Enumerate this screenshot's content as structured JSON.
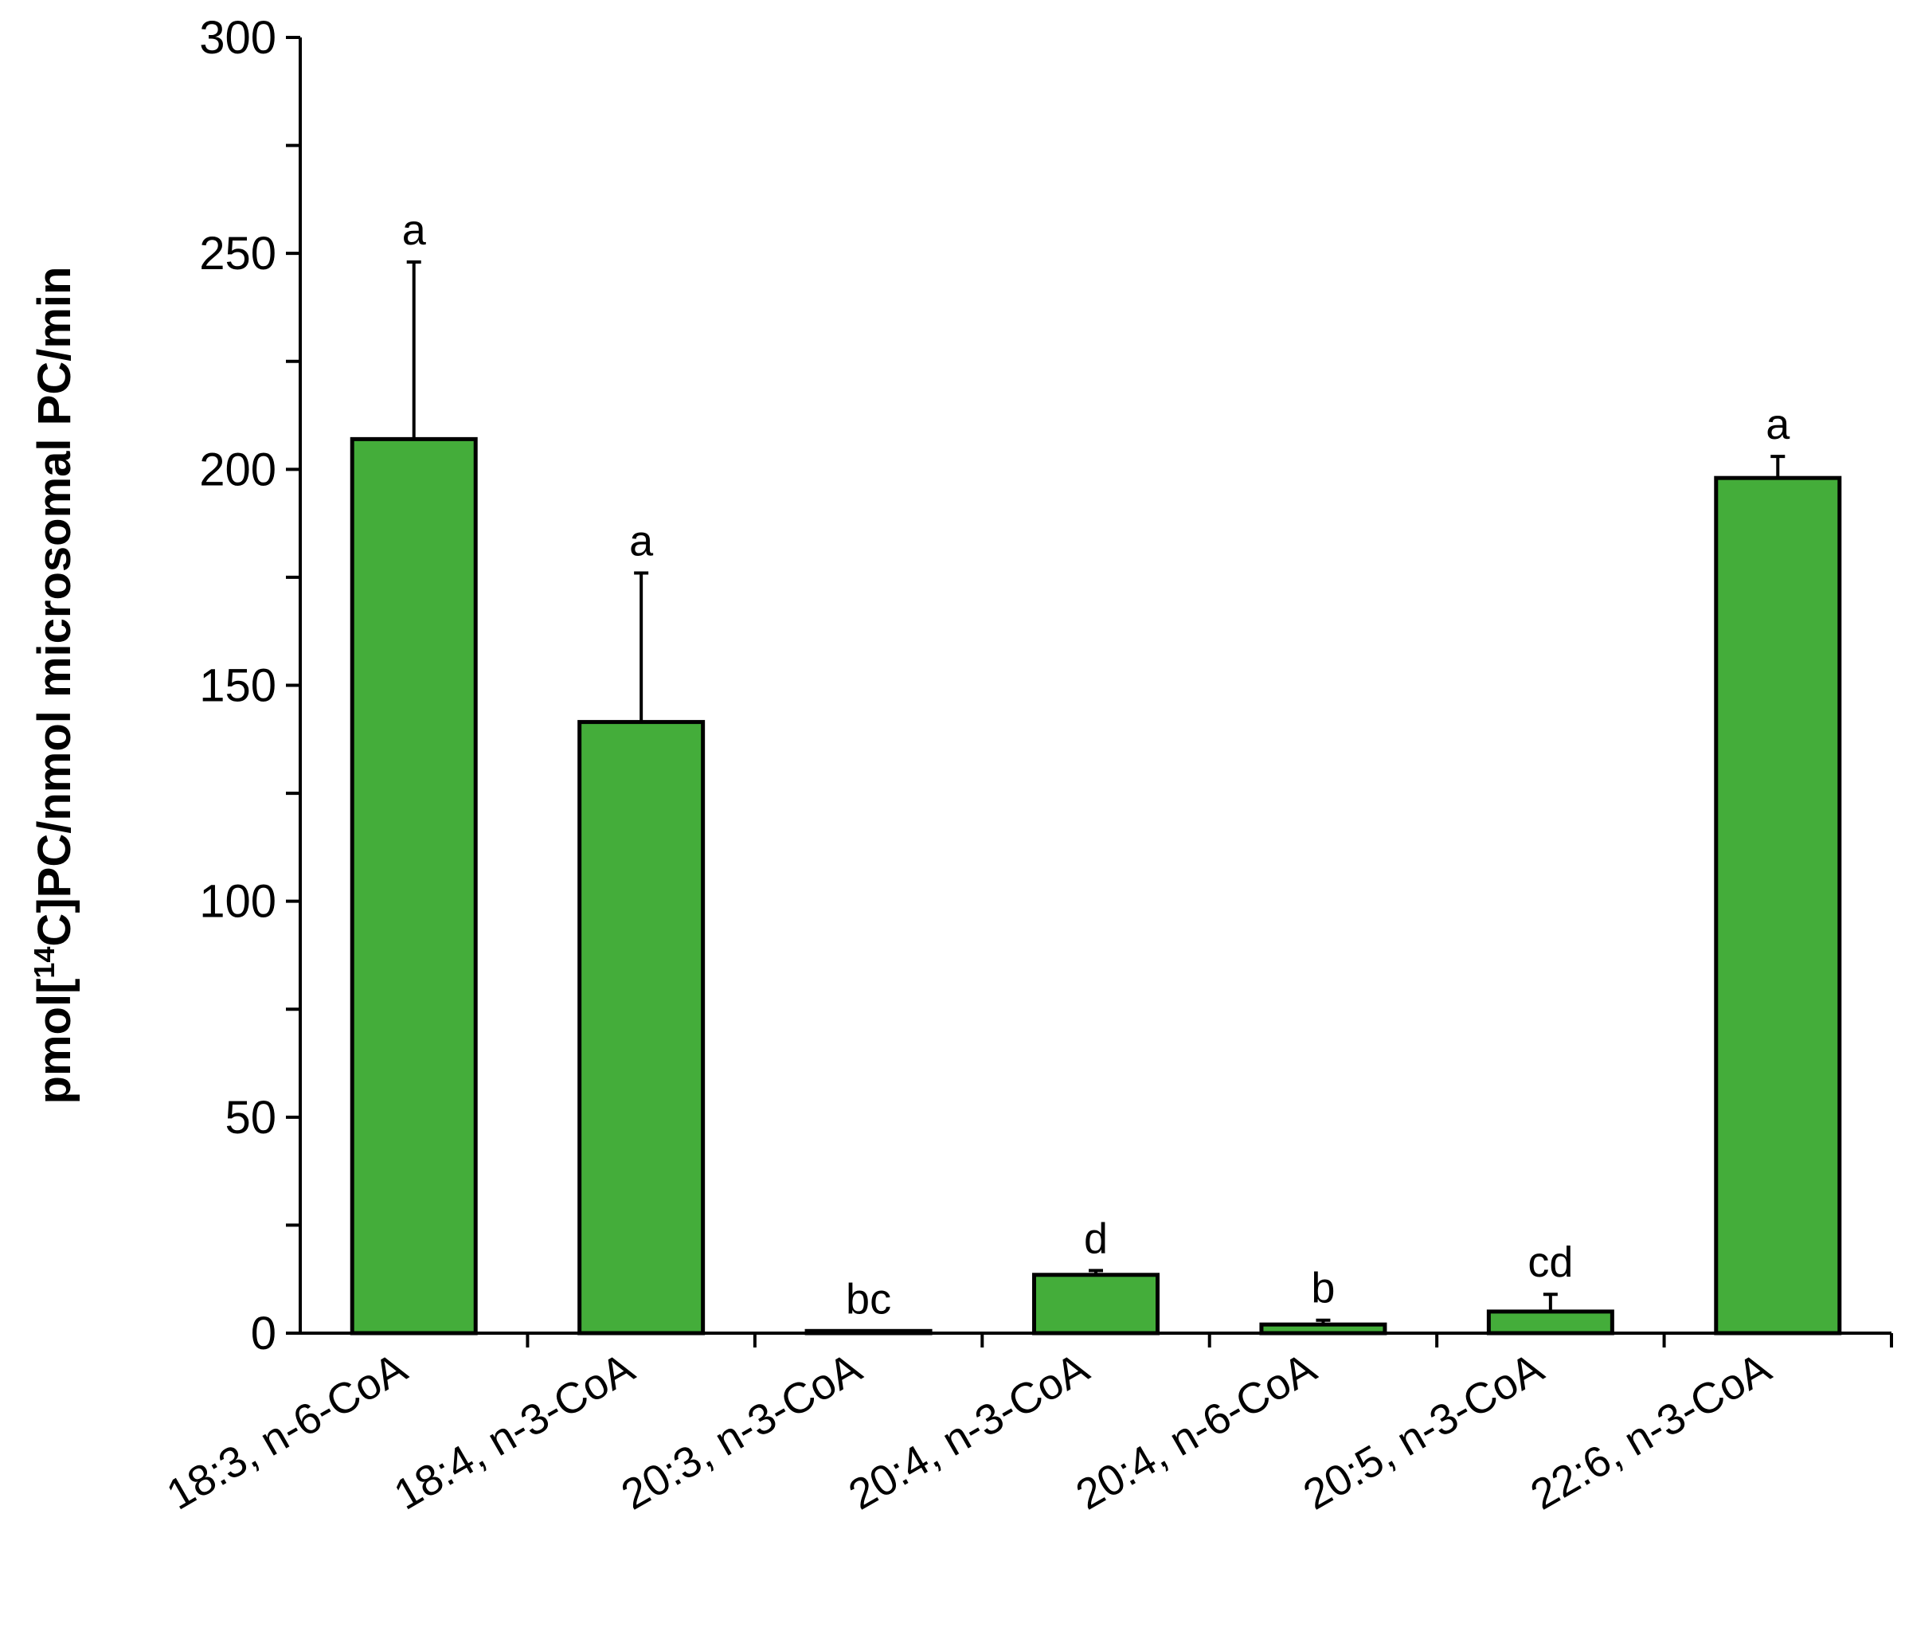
{
  "chart_data": {
    "type": "bar",
    "title": "",
    "xlabel": "",
    "ylabel_parts": [
      "pmol[",
      "14",
      "C]PC/nmol microsomal PC/min"
    ],
    "categories": [
      "18:3, n-6-CoA",
      "18:4, n-3-CoA",
      "20:3, n-3-CoA",
      "20:4, n-3-CoA",
      "20:4, n-6-CoA",
      "20:5, n-3-CoA",
      "22:6, n-3-CoA"
    ],
    "values": [
      207,
      141.5,
      0.5,
      13.5,
      2,
      5,
      198
    ],
    "errors": [
      41,
      34.5,
      0,
      1,
      1,
      4,
      5
    ],
    "significance": [
      "a",
      "a",
      "bc",
      "d",
      "b",
      "cd",
      "a"
    ],
    "ylim": [
      0,
      300
    ],
    "yticks": [
      0,
      50,
      100,
      150,
      200,
      250,
      300
    ],
    "bar_color": "#44AD3A",
    "grid": false,
    "legend": "none"
  }
}
